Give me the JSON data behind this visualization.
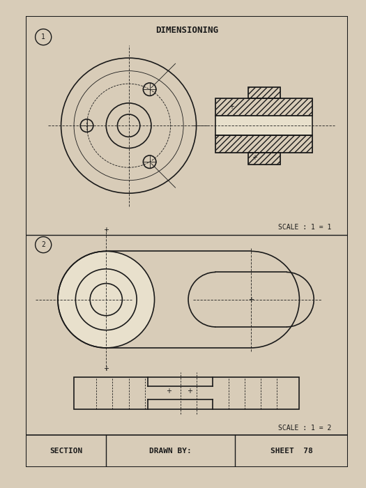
{
  "title": "DIMENSIONING",
  "bg_color": "#d8ccb8",
  "paper_color": "#e8e0cc",
  "line_color": "#1a1a1a",
  "hatch_color": "#1a1a1a",
  "scale1_text": "SCALE : 1 = 1",
  "scale2_text": "SCALE : 1 = 2",
  "section_text": "SECTION",
  "drawn_by_text": "DRAWN BY:",
  "sheet_text": "SHEET  78",
  "circle1_label": "1",
  "circle2_label": "2"
}
